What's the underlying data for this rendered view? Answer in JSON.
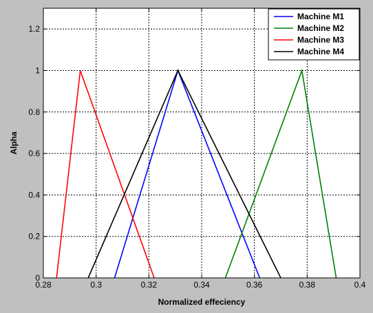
{
  "figure": {
    "background": "#c0c0c0"
  },
  "chart_data": {
    "type": "line",
    "title": "",
    "xlabel": "Normalized effeciency",
    "ylabel": "Alpha",
    "xlim": [
      0.28,
      0.4
    ],
    "ylim": [
      0,
      1.3
    ],
    "xticks": [
      0.28,
      0.3,
      0.32,
      0.34,
      0.36,
      0.38,
      0.4
    ],
    "xtick_labels": [
      "0.28",
      "0.3",
      "0.32",
      "0.34",
      "0.36",
      "0.38",
      "0.4"
    ],
    "yticks": [
      0,
      0.2,
      0.4,
      0.6,
      0.8,
      1,
      1.2
    ],
    "ytick_labels": [
      "0",
      "0.2",
      "0.4",
      "0.6",
      "0.8",
      "1",
      "1.2"
    ],
    "grid": true,
    "legend_position": "top-right",
    "series": [
      {
        "name": "Machine M1",
        "color": "#0000ff",
        "x": [
          0.307,
          0.331,
          0.362
        ],
        "y": [
          0,
          1,
          0
        ]
      },
      {
        "name": "Machine M2",
        "color": "#008000",
        "x": [
          0.349,
          0.378,
          0.391
        ],
        "y": [
          0,
          1,
          0
        ]
      },
      {
        "name": "Machine M3",
        "color": "#ff0000",
        "x": [
          0.285,
          0.294,
          0.322
        ],
        "y": [
          0,
          1,
          0
        ]
      },
      {
        "name": "Machine M4",
        "color": "#000000",
        "x": [
          0.297,
          0.331,
          0.37
        ],
        "y": [
          0,
          1,
          0
        ]
      }
    ]
  }
}
